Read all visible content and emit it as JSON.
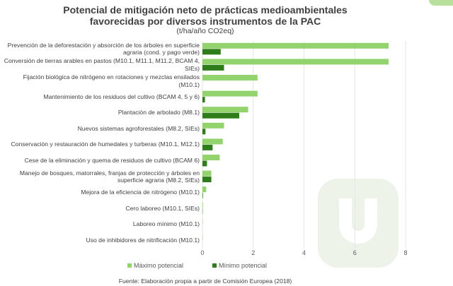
{
  "chart_data": {
    "type": "bar",
    "orientation": "horizontal",
    "title": "Potencial de mitigación neto de prácticas medioambientales favorecidas por diversos instrumentos de la PAC",
    "subtitle": "(t/ha/año CO2eq)",
    "categories": [
      "Prevención de la deforestación y absorción de los árboles  en superficie agraria (cond. y pago verde)",
      "Conversión de tierras arables en pastos (M10.1, M11.1, M11.2, BCAM 4, SIEs)",
      "Fijación biológica de nitrógeno en rotaciones y mezclas ensilados (M10.1)",
      "Mantenimiento de los residuos del cultivo (BCAM 4, 5 y 6)",
      "Plantación de arbolado (M8.1)",
      "Nuevos sistemas agroforestales (M8.2, SIEs)",
      "Conservación y restauración de humedales y turberas (M10.1, M12.1)",
      "Cese de la eliminación y quema de residuos de cultivo (BCAM 6)",
      "Manejo de bosques, matorrales, franjas de protección y árboles en superficie agraria (M8.2, SIEs)",
      "Mejora de la eficiencia de nitrógeno (M10.1)",
      "Cero laboreo (M10.1, SIEs)",
      "Laboreo mínimo (M10.1)",
      "Uso de inhibidores de nitrificación (M10.1)"
    ],
    "series": [
      {
        "name": "Máximo potencial",
        "color": "#92d36e",
        "values": [
          7.33,
          7.33,
          2.17,
          2.17,
          1.8,
          0.85,
          0.8,
          0.68,
          0.35,
          0.15,
          0.02,
          0.01,
          0.01
        ]
      },
      {
        "name": "Mínimo potencial",
        "color": "#2e7d1a",
        "values": [
          0.72,
          0.85,
          0,
          0.1,
          1.45,
          0.12,
          0.4,
          0.18,
          0.35,
          0.02,
          0.01,
          0,
          0
        ]
      }
    ],
    "xlim": [
      0,
      8
    ],
    "xticks": [
      "0",
      "2",
      "4",
      "6",
      "8"
    ],
    "grid": true,
    "legend": "bottom",
    "source": "Fuente: Elaboración propia a partir de Comisión Europea (2018)"
  }
}
